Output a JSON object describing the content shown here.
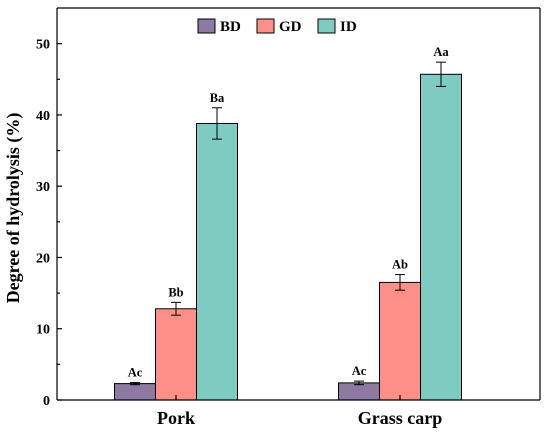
{
  "chart_data": {
    "type": "bar",
    "title": "",
    "xlabel": "",
    "ylabel": "Degree of hydrolysis (%)",
    "ylim": [
      0,
      55
    ],
    "yticks": [
      0,
      10,
      20,
      30,
      40,
      50
    ],
    "categories": [
      "Pork",
      "Grass carp"
    ],
    "legend_position": "top-center",
    "grid": false,
    "series": [
      {
        "name": "BD",
        "color": "#8c7aa3",
        "values": [
          2.3,
          2.4
        ],
        "errors": [
          0.15,
          0.25
        ],
        "labels": [
          "Ac",
          "Ac"
        ]
      },
      {
        "name": "GD",
        "color": "#ff9089",
        "values": [
          12.8,
          16.5
        ],
        "errors": [
          0.9,
          1.1
        ],
        "labels": [
          "Bb",
          "Ab"
        ]
      },
      {
        "name": "ID",
        "color": "#7ecbc2",
        "values": [
          38.8,
          45.7
        ],
        "errors": [
          2.2,
          1.7
        ],
        "labels": [
          "Ba",
          "Aa"
        ]
      }
    ]
  }
}
